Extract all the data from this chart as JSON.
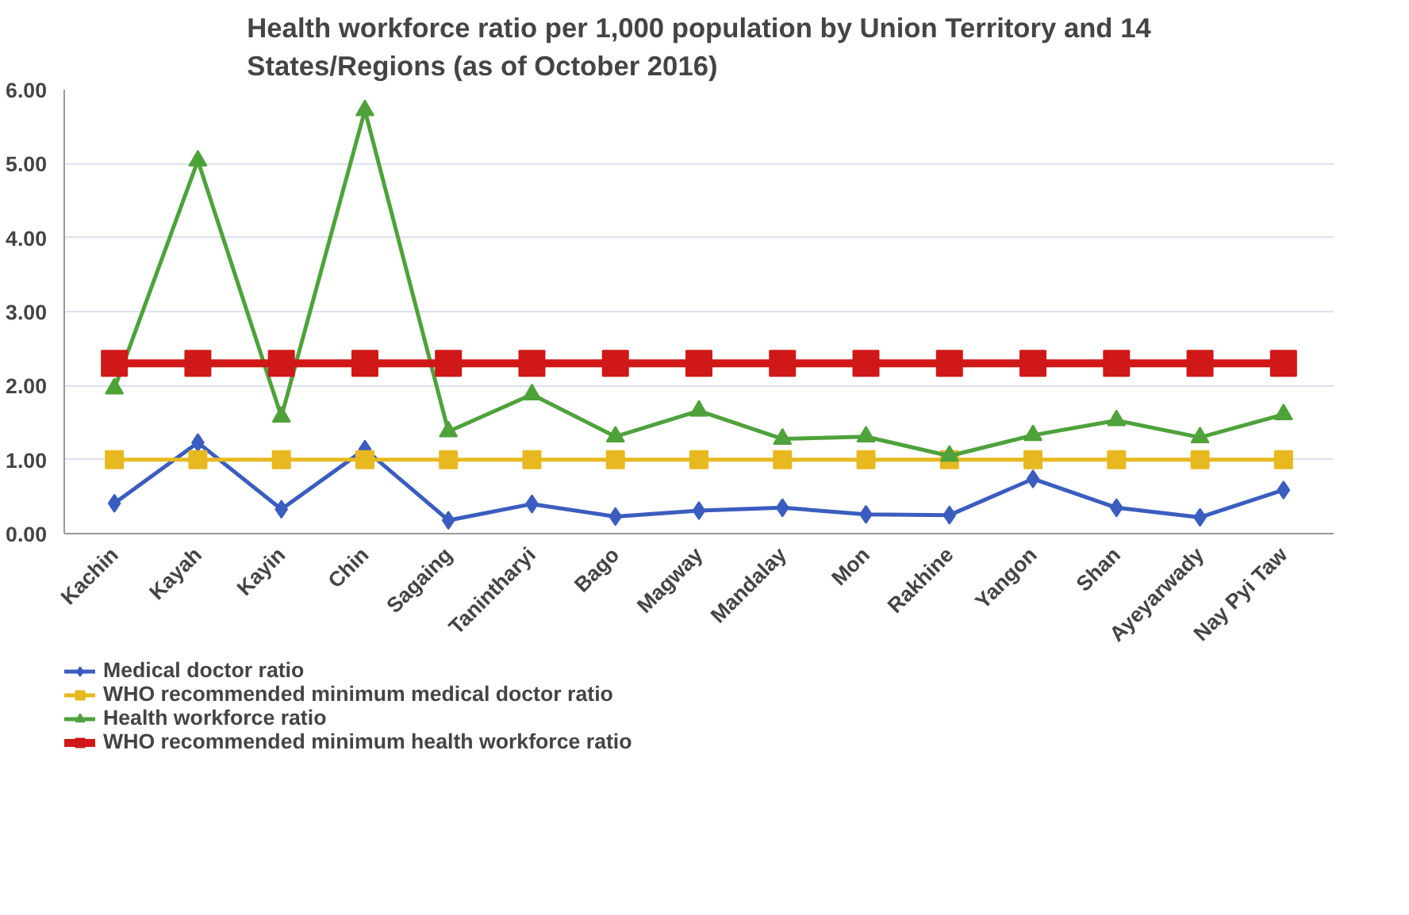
{
  "chart_data": {
    "type": "line",
    "title": "Health workforce ratio per 1,000 population by Union Territory and 14 States/Regions (as of October 2016)",
    "categories": [
      "Kachin",
      "Kayah",
      "Kayin",
      "Chin",
      "Sagaing",
      "Tanintharyi",
      "Bago",
      "Magway",
      "Mandalay",
      "Mon",
      "Rakhine",
      "Yangon",
      "Shan",
      "Ayeyarwady",
      "Nay Pyi Taw"
    ],
    "series": [
      {
        "name": "Medical doctor ratio",
        "color": "#3a5dbf",
        "marker": "diamond",
        "values": [
          0.41,
          1.23,
          0.33,
          1.14,
          0.18,
          0.4,
          0.23,
          0.31,
          0.35,
          0.26,
          0.25,
          0.74,
          0.35,
          0.22,
          0.59
        ]
      },
      {
        "name": "WHO recommended minimum medical doctor ratio",
        "color": "#e8b820",
        "marker": "square",
        "values": [
          1.0,
          1.0,
          1.0,
          1.0,
          1.0,
          1.0,
          1.0,
          1.0,
          1.0,
          1.0,
          1.0,
          1.0,
          1.0,
          1.0,
          1.0
        ]
      },
      {
        "name": "Health workforce ratio",
        "color": "#4ea23a",
        "marker": "triangle",
        "values": [
          1.96,
          5.04,
          1.58,
          5.72,
          1.38,
          1.88,
          1.31,
          1.66,
          1.28,
          1.31,
          1.05,
          1.33,
          1.53,
          1.3,
          1.61
        ]
      },
      {
        "name": "WHO recommended minimum health workforce ratio",
        "color": "#d01818",
        "marker": "square",
        "values": [
          2.3,
          2.3,
          2.3,
          2.3,
          2.3,
          2.3,
          2.3,
          2.3,
          2.3,
          2.3,
          2.3,
          2.3,
          2.3,
          2.3,
          2.3
        ]
      }
    ],
    "ylim": [
      0,
      6
    ],
    "yticks": [
      {
        "value": 0,
        "label": "0.00"
      },
      {
        "value": 1,
        "label": "1.00"
      },
      {
        "value": 2,
        "label": "2.00"
      },
      {
        "value": 3,
        "label": "3.00"
      },
      {
        "value": 4,
        "label": "4.00"
      },
      {
        "value": 5,
        "label": "5.00"
      },
      {
        "value": 6,
        "label": "6.00"
      }
    ],
    "grid": "y",
    "legend": "bottom",
    "line_style": "solid"
  }
}
